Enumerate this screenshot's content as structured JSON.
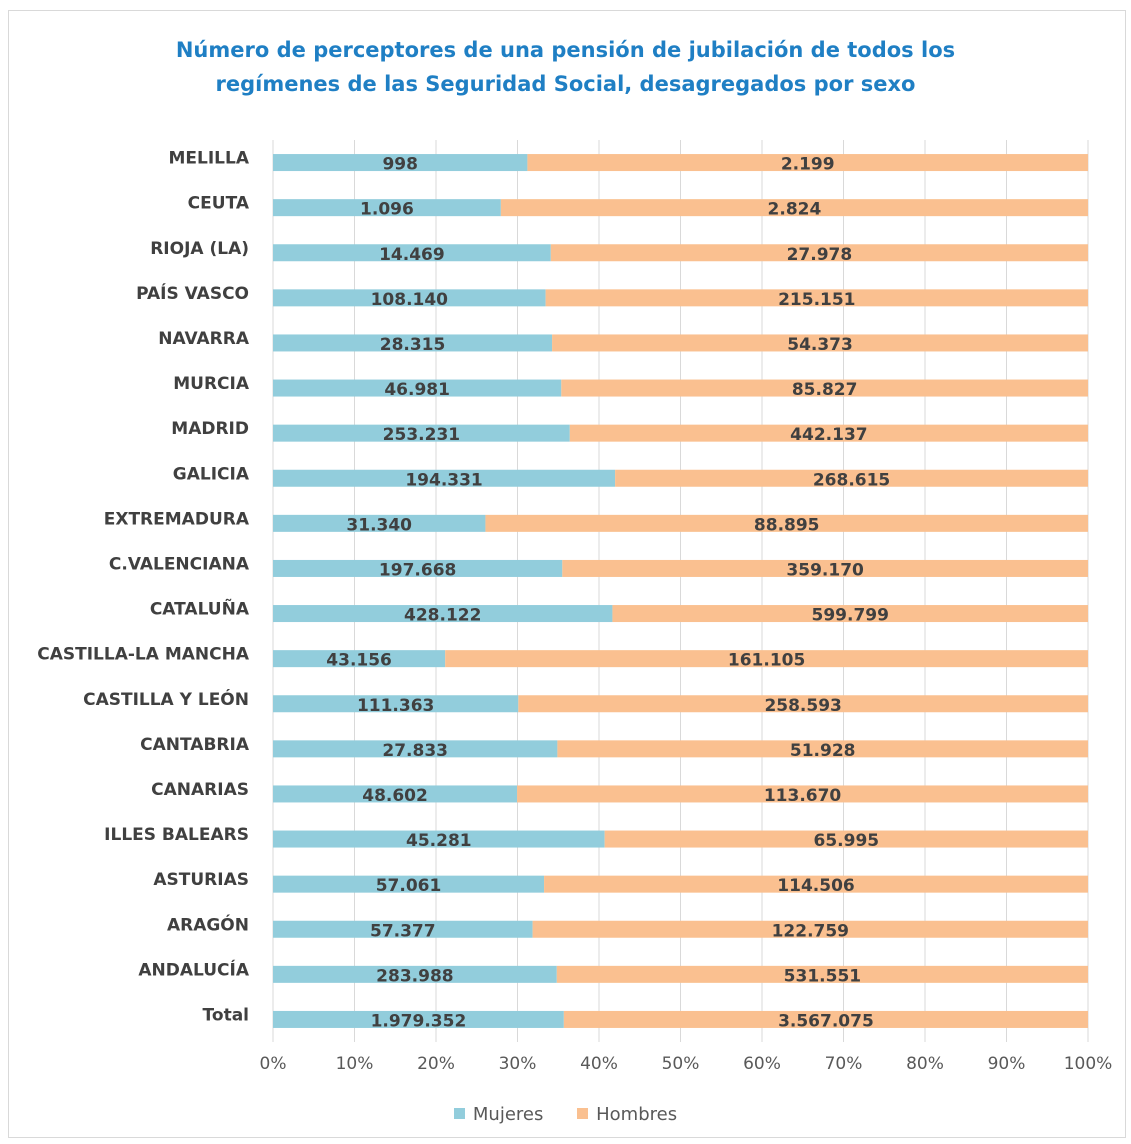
{
  "chart_data": {
    "type": "bar",
    "orientation": "horizontal",
    "stacking": "percent",
    "title_lines": [
      "Número de perceptores de una pensión de jubilación de todos los",
      "regímenes de las Seguridad Social, desagregados por sexo"
    ],
    "categories": [
      "MELILLA",
      "CEUTA",
      "RIOJA (LA)",
      "PAÍS VASCO",
      "NAVARRA",
      "MURCIA",
      "MADRID",
      "GALICIA",
      "EXTREMADURA",
      "C.VALENCIANA",
      "CATALUÑA",
      "CASTILLA-LA MANCHA",
      "CASTILLA Y LEÓN",
      "CANTABRIA",
      "CANARIAS",
      "ILLES BALEARS",
      "ASTURIAS",
      "ARAGÓN",
      "ANDALUCÍA",
      "Total"
    ],
    "series": [
      {
        "name": "Mujeres",
        "color": "#92cddc",
        "values": [
          998,
          1096,
          14469,
          108140,
          28315,
          46981,
          253231,
          194331,
          31340,
          197668,
          428122,
          43156,
          111363,
          27833,
          48602,
          45281,
          57061,
          57377,
          283988,
          1979352
        ],
        "labels": [
          "998",
          "1.096",
          "14.469",
          "108.140",
          "28.315",
          "46.981",
          "253.231",
          "194.331",
          "31.340",
          "197.668",
          "428.122",
          "43.156",
          "111.363",
          "27.833",
          "48.602",
          "45.281",
          "57.061",
          "57.377",
          "283.988",
          "1.979.352"
        ]
      },
      {
        "name": "Hombres",
        "color": "#fac090",
        "values": [
          2199,
          2824,
          27978,
          215151,
          54373,
          85827,
          442137,
          268615,
          88895,
          359170,
          599799,
          161105,
          258593,
          51928,
          113670,
          65995,
          114506,
          122759,
          531551,
          3567075
        ],
        "labels": [
          "2.199",
          "2.824",
          "27.978",
          "215.151",
          "54.373",
          "85.827",
          "442.137",
          "268.615",
          "88.895",
          "359.170",
          "599.799",
          "161.105",
          "258.593",
          "51.928",
          "113.670",
          "65.995",
          "114.506",
          "122.759",
          "531.551",
          "3.567.075"
        ]
      }
    ],
    "x_ticks": [
      "0%",
      "10%",
      "20%",
      "30%",
      "40%",
      "50%",
      "60%",
      "70%",
      "80%",
      "90%",
      "100%"
    ],
    "xlim": [
      0,
      100
    ],
    "grid": true,
    "legend_position": "bottom"
  }
}
